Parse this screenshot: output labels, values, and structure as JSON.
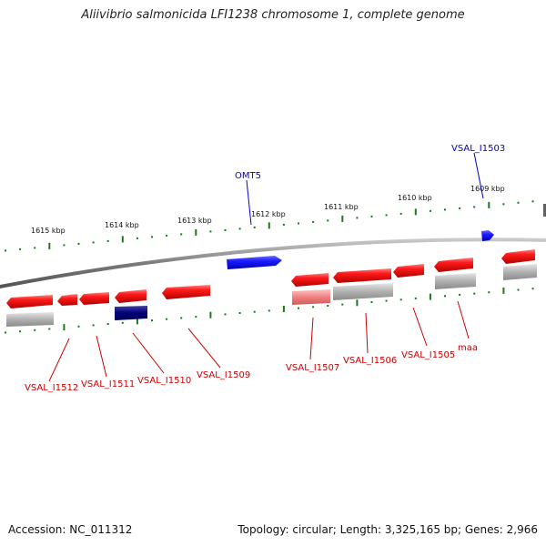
{
  "title": "Aliivibrio salmonicida LFI1238 chromosome 1, complete genome",
  "footer": {
    "accession_label": "Accession:",
    "accession_value": "NC_011312",
    "summary": "Topology: circular; Length: 3,325,165 bp; Genes: 2,966"
  },
  "colors": {
    "gene_forward": "#e8101a",
    "gene_reverse": "#ff1010",
    "gene_blue": "#1a1aff",
    "gene_navy": "#00007a",
    "pseudogene_gray": "#a9a9a9",
    "pseudogene_pink": "#f08080",
    "backbone": "#7a7a7a",
    "tick_green": "#1a7a1a",
    "label_red": "#cc0000",
    "label_blue": "#0000cc"
  },
  "scale_labels": [
    "1615 kbp",
    "1614 kbp",
    "1613 kbp",
    "1612 kbp",
    "1611 kbp",
    "1610 kbp",
    "1609 kbp"
  ],
  "gene_labels": {
    "top": [
      "OMT5",
      "VSAL_I1503"
    ],
    "bottom": [
      "VSAL_I1512",
      "VSAL_I1511",
      "VSAL_I1510",
      "VSAL_I1509",
      "VSAL_I1507",
      "VSAL_I1506",
      "VSAL_I1505",
      "maa"
    ]
  }
}
